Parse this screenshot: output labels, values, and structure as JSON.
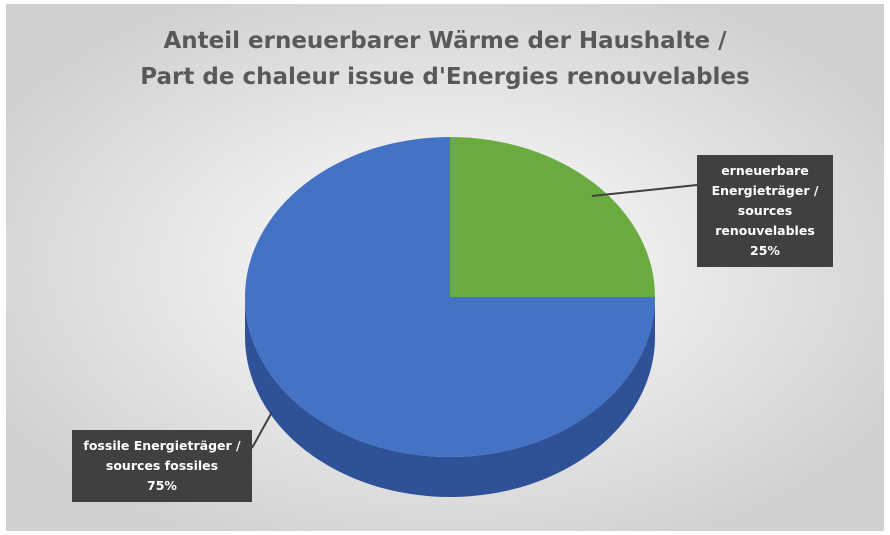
{
  "chart_data": {
    "type": "pie",
    "title": [
      "Anteil erneuerbarer Wärme der Haushalte /",
      "Part de chaleur issue d'Energies renouvelables"
    ],
    "categories": [
      "erneuerbare Energieträger / sources renouvelables",
      "fossile Energieträger / sources fossiles"
    ],
    "values": [
      25,
      75
    ],
    "value_labels": [
      "25%",
      "75%"
    ],
    "colors": [
      "#6aab3f",
      "#4472c4"
    ],
    "side_colors": [
      "#4e7f2e",
      "#2f5197"
    ]
  }
}
